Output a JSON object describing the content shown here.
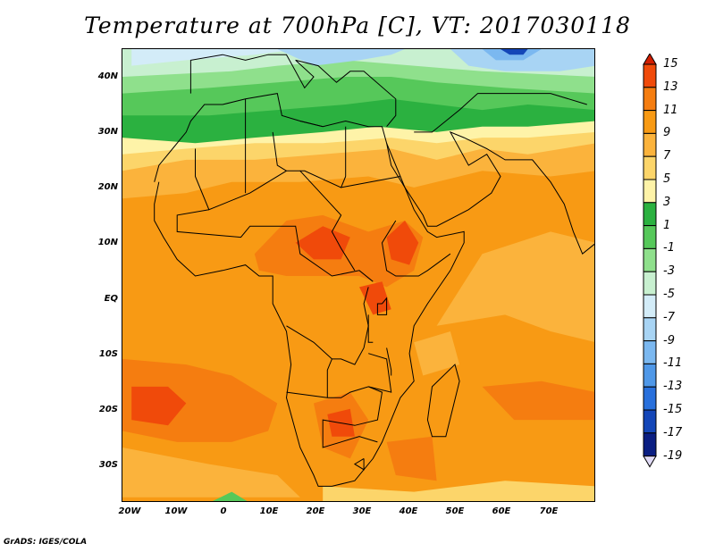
{
  "title": "Temperature at 700hPa [C], VT: 2017030118",
  "credit": "GrADS: IGES/COLA",
  "axes": {
    "lat_labels": [
      "40N",
      "30N",
      "20N",
      "10N",
      "EQ",
      "10S",
      "20S",
      "30S"
    ],
    "lon_labels": [
      "20W",
      "10W",
      "0",
      "10E",
      "20E",
      "30E",
      "40E",
      "50E",
      "60E",
      "70E"
    ]
  },
  "colorbar": {
    "labels": [
      "15",
      "13",
      "11",
      "9",
      "7",
      "5",
      "3",
      "1",
      "-1",
      "-3",
      "-5",
      "-7",
      "-9",
      "-11",
      "-13",
      "-15",
      "-17",
      "-19"
    ],
    "colors": [
      "#d21e00",
      "#f04a0a",
      "#f57d10",
      "#f89a14",
      "#fbb33c",
      "#fcd56a",
      "#fef3a8",
      "#2bb140",
      "#56c85a",
      "#8fe08c",
      "#c8f0d0",
      "#d3ecf8",
      "#a8d4f4",
      "#7bb8f0",
      "#4f98e8",
      "#2870dc",
      "#1446b8",
      "#0a1e82",
      "#e0daf5"
    ]
  },
  "map": {
    "extent": {
      "lon": [
        -24,
        80
      ],
      "lat": [
        -37,
        45
      ]
    },
    "colors": {
      "ocean_warm": "#f89a14",
      "warm_hot": "#f57d10",
      "hottest": "#f04a0a",
      "pale_warm": "#fbb33c",
      "yellow": "#fcd56a",
      "pale_yellow": "#fef3a8",
      "green": "#2bb140",
      "light_green": "#56c85a",
      "pale_green": "#8fe08c",
      "mint": "#c8f0d0",
      "pale_blue": "#d3ecf8",
      "light_blue": "#a8d4f4",
      "blue": "#7bb8f0",
      "dark_blue": "#1446b8"
    }
  }
}
